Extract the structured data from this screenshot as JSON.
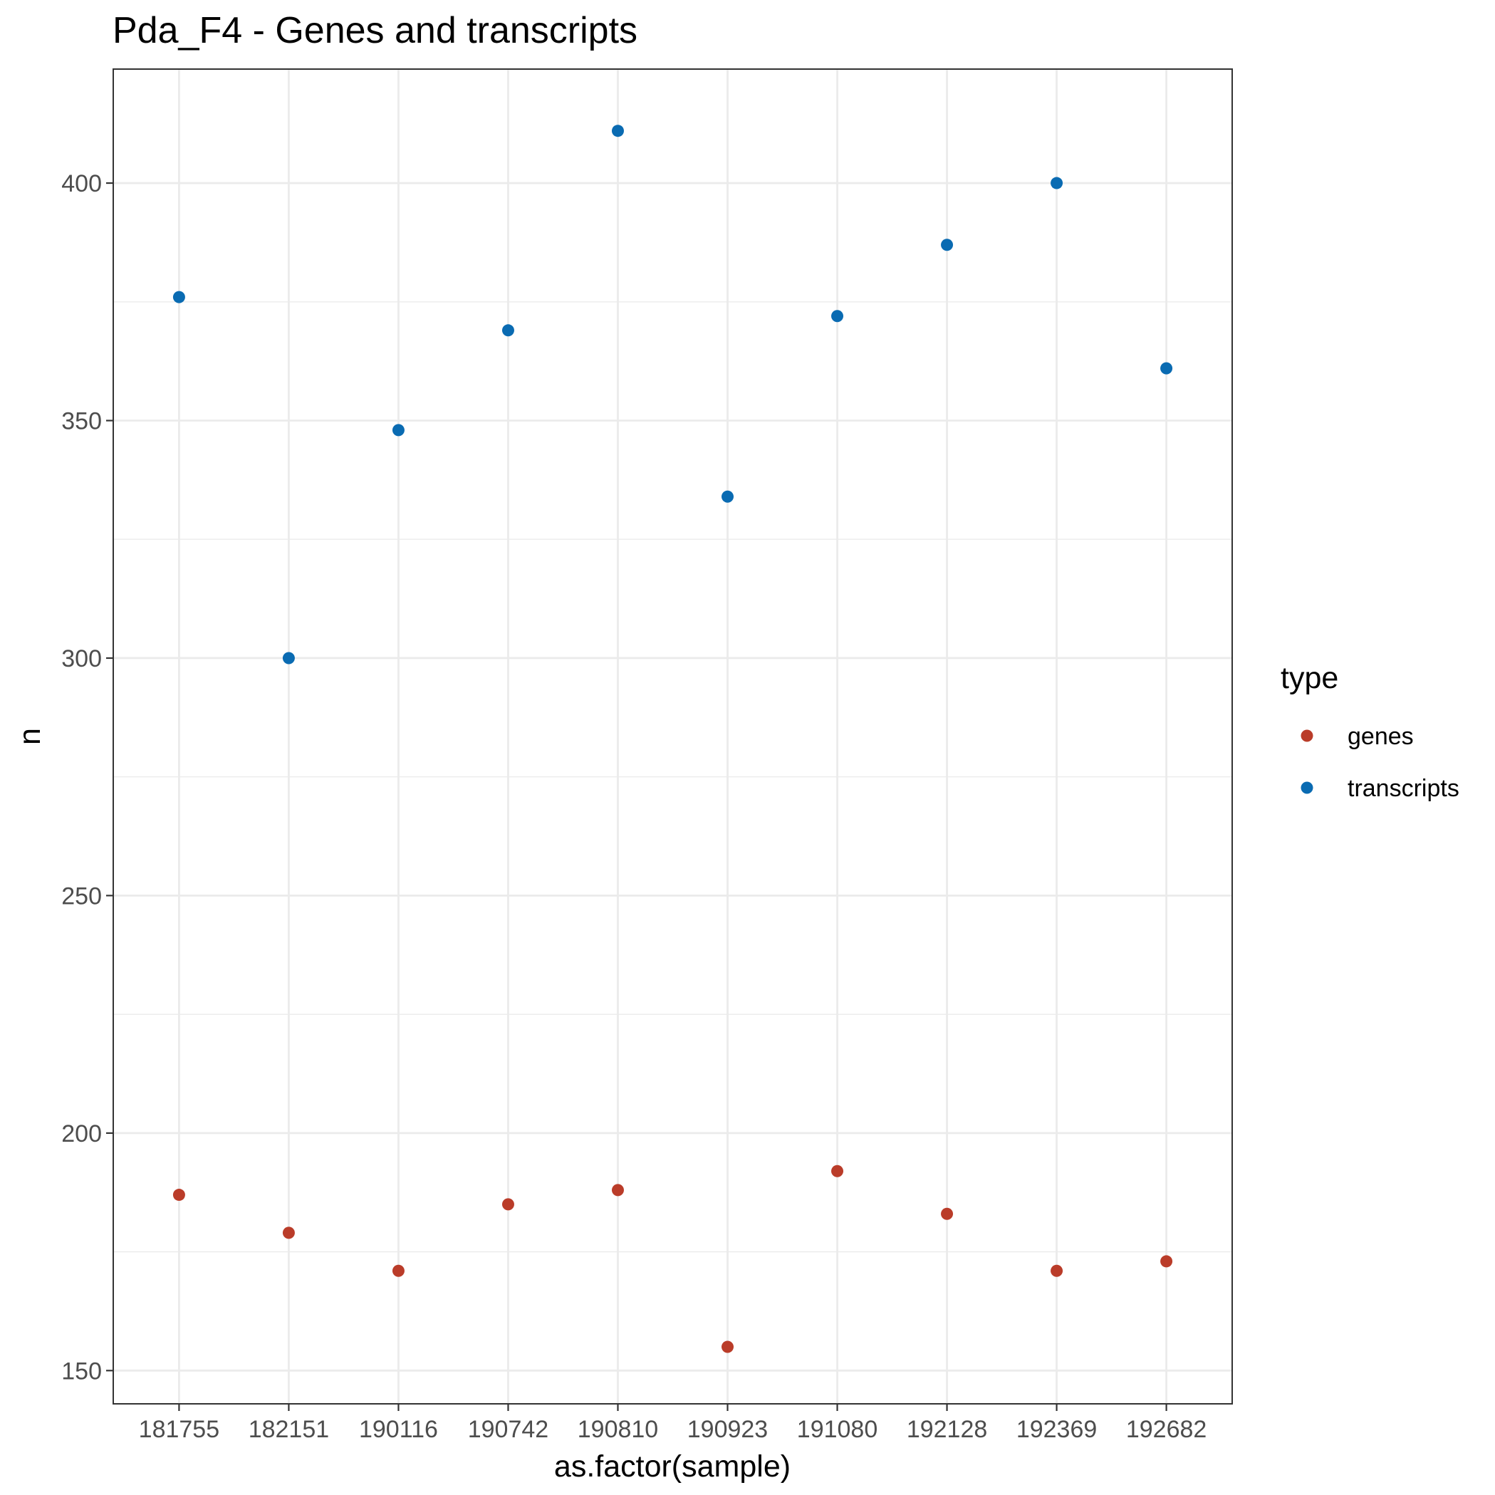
{
  "chart_data": {
    "type": "scatter",
    "title": "Pda_F4 - Genes and transcripts",
    "xlabel": "as.factor(sample)",
    "ylabel": "n",
    "categories": [
      "181755",
      "182151",
      "190116",
      "190742",
      "190810",
      "190923",
      "191080",
      "192128",
      "192369",
      "192682"
    ],
    "y_ticks": [
      150,
      200,
      250,
      300,
      350,
      400
    ],
    "y_tick_labels": [
      "150",
      "200",
      "250",
      "300",
      "350",
      "400"
    ],
    "y_minor_ticks": [
      175,
      225,
      275,
      325,
      375
    ],
    "ylim": [
      143,
      424
    ],
    "grid": true,
    "legend": {
      "title": "type",
      "position": "right"
    },
    "series": [
      {
        "name": "genes",
        "color": "#BA3C29",
        "values": [
          187,
          179,
          171,
          185,
          188,
          155,
          192,
          183,
          171,
          173
        ]
      },
      {
        "name": "transcripts",
        "color": "#0A6BB2",
        "values": [
          376,
          300,
          348,
          369,
          411,
          334,
          372,
          387,
          400,
          361
        ]
      }
    ]
  }
}
